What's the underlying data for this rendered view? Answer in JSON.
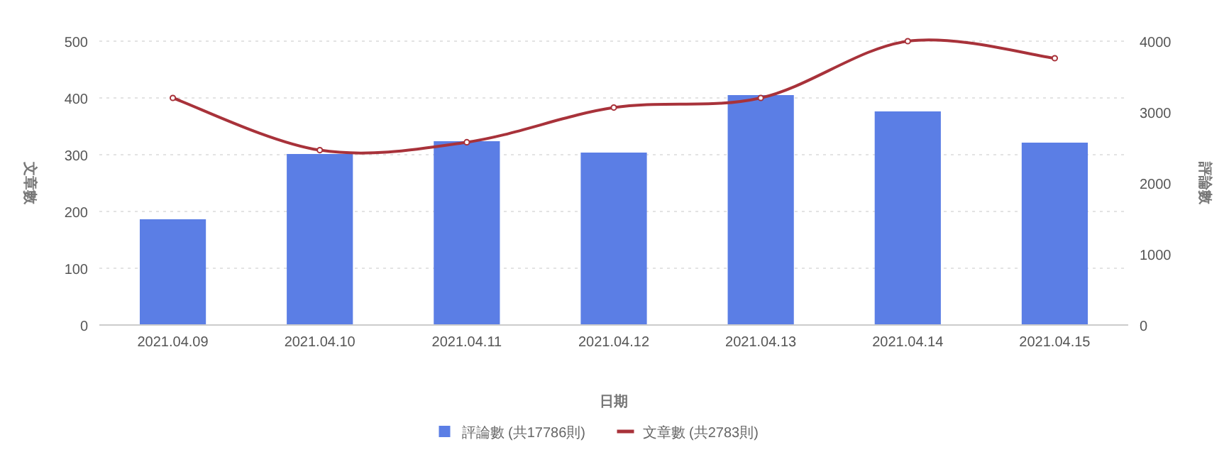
{
  "chart_data": {
    "type": "bar",
    "xlabel": "日期",
    "ylabel": "文章數",
    "y2label": "評論數",
    "categories": [
      "2021.04.09",
      "2021.04.10",
      "2021.04.11",
      "2021.04.12",
      "2021.04.13",
      "2021.04.14",
      "2021.04.15"
    ],
    "series": [
      {
        "name": "評論數 (共17786則)",
        "color": "#5b7ee5",
        "axis": "y2",
        "values": [
          1490,
          2410,
          2590,
          2430,
          3240,
          3010,
          2570
        ]
      },
      {
        "name": "文章數 (共2783則)",
        "color": "#a8323a",
        "axis": "y",
        "type": "line",
        "values": [
          400,
          308,
          322,
          383,
          400,
          500,
          470
        ]
      }
    ],
    "ylim": [
      0,
      500
    ],
    "yticks": [
      0,
      100,
      200,
      300,
      400,
      500
    ],
    "y2lim": [
      0,
      4000
    ],
    "y2ticks": [
      0,
      1000,
      2000,
      3000,
      4000
    ],
    "grid": "y",
    "legend": "bottom",
    "marker": "circle",
    "line_style": "solid"
  }
}
